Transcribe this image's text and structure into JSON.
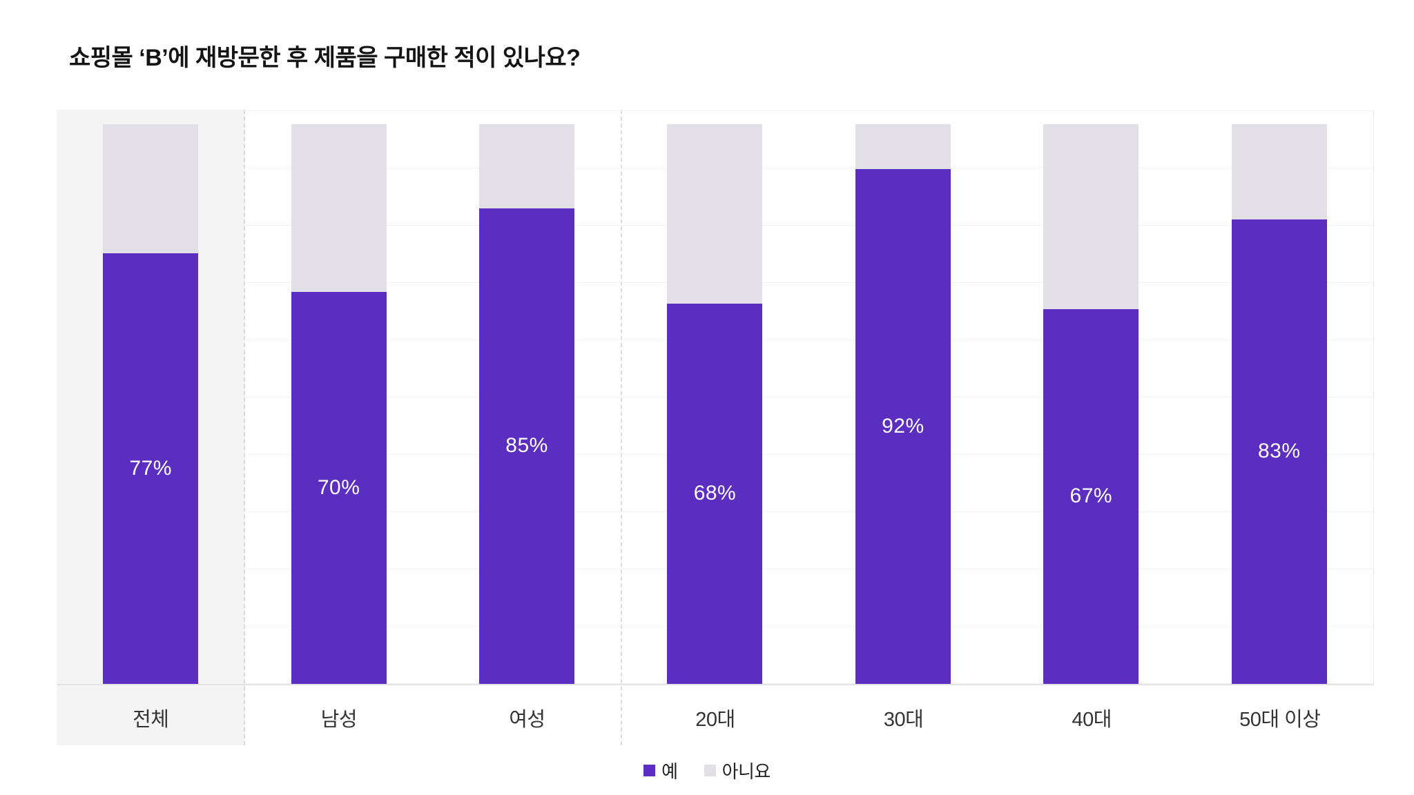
{
  "title": "쇼핑몰 ‘B’에 재방문한 후 제품을 구매한 적이 있나요?",
  "legend": {
    "yes_label": "예",
    "no_label": "아니요"
  },
  "colors": {
    "yes": "#5b2ec1",
    "no": "#e2e0e6",
    "highlight_bg": "#f4f4f5"
  },
  "chart_data": {
    "type": "bar",
    "stacked": true,
    "orientation": "vertical",
    "title": "쇼핑몰 ‘B’에 재방문한 후 제품을 구매한 적이 있나요?",
    "categories": [
      "전체",
      "남성",
      "여성",
      "20대",
      "30대",
      "40대",
      "50대 이상"
    ],
    "series": [
      {
        "name": "예",
        "values": [
          77,
          70,
          85,
          68,
          92,
          67,
          83
        ]
      },
      {
        "name": "아니요",
        "values": [
          23,
          30,
          15,
          32,
          8,
          33,
          17
        ]
      }
    ],
    "value_labels": [
      "77%",
      "70%",
      "85%",
      "68%",
      "92%",
      "67%",
      "83%"
    ],
    "ylim": [
      0,
      100
    ],
    "grid": "horizontal-faint",
    "legend_position": "bottom",
    "highlight_category": "전체",
    "group_separator_after": "여성"
  }
}
